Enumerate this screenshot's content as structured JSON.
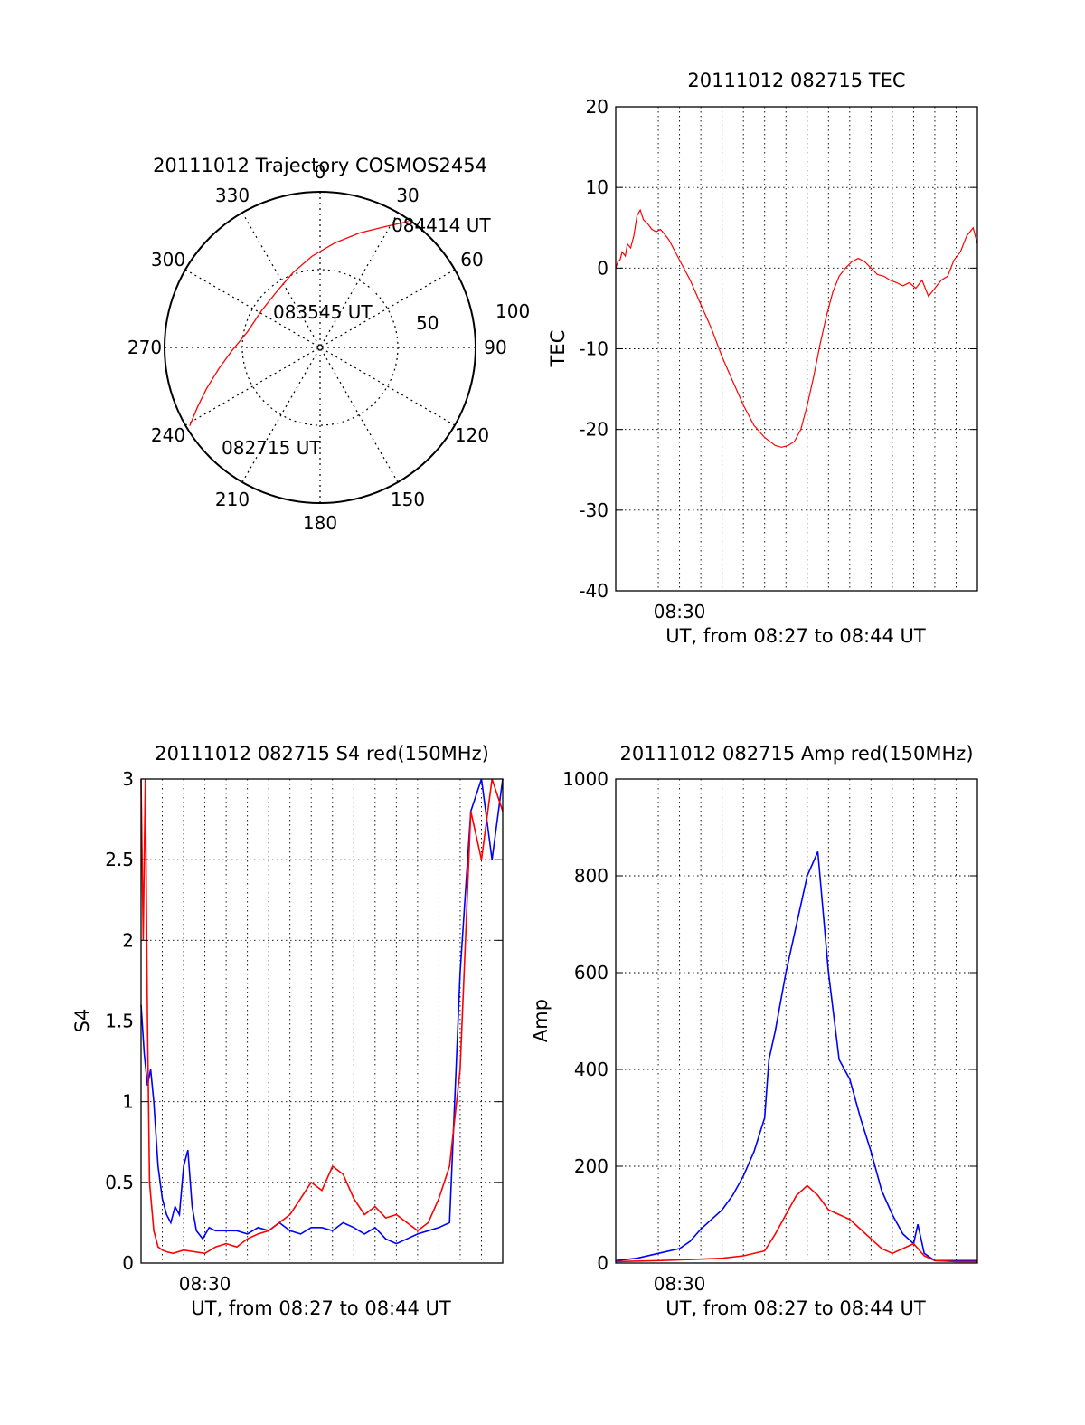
{
  "colors": {
    "red": "#ff0000",
    "blue": "#0000ff",
    "axis": "#000000"
  },
  "chart_data": [
    {
      "type": "polar",
      "id": "trajectory",
      "title": "20111012 Trajectory COSMOS2454",
      "azimuth_labels": [
        "0",
        "30",
        "60",
        "90",
        "120",
        "150",
        "180",
        "210",
        "240",
        "270",
        "300",
        "330"
      ],
      "radial_ring_labels": [
        "50",
        "100"
      ],
      "series": [
        {
          "color": "#ff0000",
          "points": [
            {
              "az": 239,
              "zenith": 88
            },
            {
              "az": 244,
              "zenith": 79
            },
            {
              "az": 250,
              "zenith": 70
            },
            {
              "az": 258,
              "zenith": 60
            },
            {
              "az": 268,
              "zenith": 51
            },
            {
              "az": 282,
              "zenith": 43
            },
            {
              "az": 302,
              "zenith": 40
            },
            {
              "az": 323,
              "zenith": 41
            },
            {
              "az": 340,
              "zenith": 46
            },
            {
              "az": 355,
              "zenith": 53
            },
            {
              "az": 8,
              "zenith": 61
            },
            {
              "az": 19,
              "zenith": 70
            },
            {
              "az": 28,
              "zenith": 79
            },
            {
              "az": 35,
              "zenith": 89
            }
          ]
        }
      ],
      "annotations": [
        {
          "text": "084414 UT",
          "az": 35,
          "zenith": 89
        },
        {
          "text": "083545 UT",
          "az": 300,
          "zenith": 40
        },
        {
          "text": "082715 UT",
          "az": 239,
          "zenith": 88
        }
      ]
    },
    {
      "type": "line",
      "id": "tec",
      "title": "20111012 082715 TEC",
      "ylabel": "TEC",
      "xlabel": "UT, from 08:27 to 08:44 UT",
      "xlim": [
        0,
        17
      ],
      "ylim": [
        -40,
        20
      ],
      "yticks": [
        -40,
        -30,
        -20,
        -10,
        0,
        10,
        20
      ],
      "xtick_labels": [
        {
          "x": 3,
          "label": "08:30"
        }
      ],
      "series": [
        {
          "color": "#ff0000",
          "x": [
            0.0,
            0.1,
            0.2,
            0.3,
            0.45,
            0.55,
            0.7,
            0.85,
            1.0,
            1.15,
            1.3,
            1.5,
            1.7,
            1.9,
            2.1,
            2.3,
            2.5,
            2.8,
            3.1,
            3.5,
            4.0,
            4.5,
            5.0,
            5.5,
            6.0,
            6.5,
            7.0,
            7.5,
            7.8,
            8.1,
            8.4,
            8.7,
            9.0,
            9.3,
            9.6,
            9.9,
            10.2,
            10.5,
            10.8,
            11.1,
            11.4,
            11.7,
            12.0,
            12.3,
            12.6,
            12.9,
            13.2,
            13.5,
            13.8,
            14.1,
            14.4,
            14.7,
            15.0,
            15.3,
            15.6,
            15.9,
            16.2,
            16.5,
            16.8,
            17.0
          ],
          "values": [
            0.0,
            0.8,
            1.0,
            2.0,
            1.5,
            3.0,
            2.5,
            4.0,
            6.5,
            7.2,
            6.0,
            5.5,
            4.8,
            4.5,
            4.8,
            4.2,
            3.5,
            2.0,
            0.5,
            -1.5,
            -4.5,
            -7.5,
            -11.0,
            -14.0,
            -17.0,
            -19.5,
            -21.0,
            -22.0,
            -22.2,
            -22.0,
            -21.5,
            -20.0,
            -17.0,
            -13.5,
            -9.5,
            -6.0,
            -3.0,
            -1.0,
            0.0,
            0.8,
            1.2,
            0.8,
            0.0,
            -0.8,
            -1.0,
            -1.5,
            -1.8,
            -2.2,
            -1.8,
            -2.5,
            -1.5,
            -3.5,
            -2.5,
            -1.5,
            -1.0,
            1.0,
            2.0,
            4.0,
            5.0,
            3.0
          ]
        }
      ]
    },
    {
      "type": "line",
      "id": "s4",
      "title": "20111012 082715 S4 red(150MHz)",
      "ylabel": "S4",
      "xlabel": "UT, from 08:27 to 08:44 UT",
      "xlim": [
        0,
        17
      ],
      "ylim": [
        0,
        3
      ],
      "yticks": [
        0,
        0.5,
        1,
        1.5,
        2,
        2.5,
        3
      ],
      "xtick_labels": [
        {
          "x": 3,
          "label": "08:30"
        }
      ],
      "series": [
        {
          "color": "#0000ff",
          "x": [
            0.0,
            0.15,
            0.3,
            0.45,
            0.6,
            0.8,
            1.0,
            1.2,
            1.4,
            1.6,
            1.8,
            2.0,
            2.2,
            2.4,
            2.6,
            2.9,
            3.2,
            3.5,
            4.0,
            4.5,
            5.0,
            5.5,
            6.0,
            6.5,
            7.0,
            7.5,
            8.0,
            8.5,
            9.0,
            9.5,
            10.0,
            10.5,
            11.0,
            11.5,
            12.0,
            12.5,
            13.0,
            13.5,
            14.0,
            14.5,
            15.0,
            15.5,
            16.0,
            16.5,
            17.0
          ],
          "values": [
            1.6,
            1.3,
            1.1,
            1.2,
            1.0,
            0.6,
            0.4,
            0.3,
            0.25,
            0.35,
            0.3,
            0.6,
            0.7,
            0.35,
            0.2,
            0.15,
            0.22,
            0.2,
            0.2,
            0.2,
            0.18,
            0.22,
            0.2,
            0.25,
            0.2,
            0.18,
            0.22,
            0.22,
            0.2,
            0.25,
            0.22,
            0.18,
            0.22,
            0.15,
            0.12,
            0.15,
            0.18,
            0.2,
            0.22,
            0.25,
            1.8,
            2.8,
            3.0,
            2.5,
            3.0
          ]
        },
        {
          "color": "#ff0000",
          "x": [
            0.0,
            0.1,
            0.2,
            0.3,
            0.4,
            0.6,
            0.8,
            1.0,
            1.2,
            1.5,
            2.0,
            2.5,
            3.0,
            3.5,
            4.0,
            4.5,
            5.0,
            5.5,
            6.0,
            6.5,
            7.0,
            7.5,
            8.0,
            8.5,
            9.0,
            9.5,
            10.0,
            10.5,
            11.0,
            11.5,
            12.0,
            12.5,
            13.0,
            13.5,
            14.0,
            14.5,
            15.0,
            15.5,
            16.0,
            16.5,
            17.0
          ],
          "values": [
            3.0,
            2.0,
            3.0,
            1.5,
            0.5,
            0.2,
            0.1,
            0.08,
            0.07,
            0.06,
            0.08,
            0.07,
            0.06,
            0.1,
            0.12,
            0.1,
            0.15,
            0.18,
            0.2,
            0.25,
            0.3,
            0.4,
            0.5,
            0.45,
            0.6,
            0.55,
            0.4,
            0.3,
            0.35,
            0.28,
            0.3,
            0.25,
            0.2,
            0.25,
            0.4,
            0.6,
            1.2,
            2.8,
            2.5,
            3.0,
            2.8
          ]
        }
      ]
    },
    {
      "type": "line",
      "id": "amp",
      "title": "20111012 082715 Amp red(150MHz)",
      "ylabel": "Amp",
      "xlabel": "UT, from 08:27 to 08:44 UT",
      "xlim": [
        0,
        17
      ],
      "ylim": [
        0,
        1000
      ],
      "yticks": [
        0,
        200,
        400,
        600,
        800,
        1000
      ],
      "xtick_labels": [
        {
          "x": 3,
          "label": "08:30"
        }
      ],
      "series": [
        {
          "color": "#0000ff",
          "x": [
            0.0,
            1.0,
            2.0,
            3.0,
            3.5,
            4.0,
            4.5,
            5.0,
            5.5,
            6.0,
            6.5,
            7.0,
            7.2,
            7.5,
            8.0,
            8.5,
            9.0,
            9.5,
            10.0,
            10.5,
            11.0,
            11.5,
            12.0,
            12.5,
            13.0,
            13.5,
            14.0,
            14.2,
            14.5,
            15.0,
            16.0,
            17.0
          ],
          "values": [
            5,
            10,
            20,
            30,
            45,
            70,
            90,
            110,
            140,
            180,
            230,
            300,
            420,
            480,
            600,
            700,
            800,
            850,
            600,
            420,
            380,
            300,
            230,
            150,
            100,
            60,
            40,
            80,
            20,
            5,
            5,
            5
          ]
        },
        {
          "color": "#ff0000",
          "x": [
            0.0,
            2.0,
            4.0,
            5.0,
            6.0,
            7.0,
            7.5,
            8.0,
            8.5,
            9.0,
            9.5,
            10.0,
            10.5,
            11.0,
            11.5,
            12.0,
            12.5,
            13.0,
            13.5,
            14.0,
            14.5,
            15.0,
            16.0,
            17.0
          ],
          "values": [
            3,
            5,
            8,
            10,
            15,
            25,
            60,
            100,
            140,
            160,
            140,
            110,
            100,
            90,
            70,
            50,
            30,
            20,
            30,
            40,
            15,
            5,
            3,
            3
          ]
        }
      ]
    }
  ]
}
